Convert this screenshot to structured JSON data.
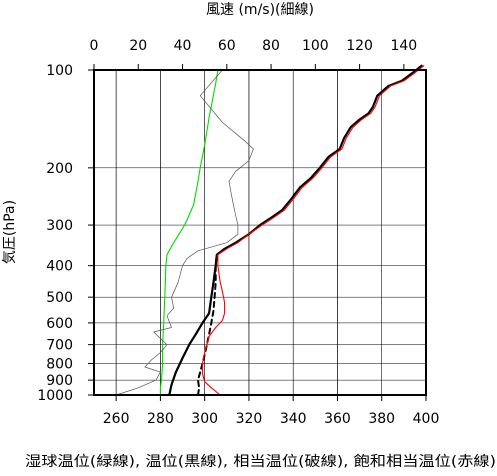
{
  "chart_data": {
    "type": "line",
    "xlabel_top": "風速 (m/s)(細線)",
    "xlabel_bottom": "湿球温位(緑線), 温位(黒線), 相当温位(破線), 飽和相当温位(赤線)",
    "ylabel": "気圧(hPa)",
    "y_scale": "log",
    "y_reversed": true,
    "ylim": [
      1000,
      100
    ],
    "y_ticks": [
      100,
      200,
      300,
      400,
      500,
      600,
      700,
      800,
      900,
      1000
    ],
    "x_bottom_lim": [
      250,
      400
    ],
    "x_bottom_ticks": [
      260,
      280,
      300,
      320,
      340,
      360,
      380,
      400
    ],
    "x_top_lim": [
      0,
      150
    ],
    "x_top_ticks": [
      0,
      20,
      40,
      60,
      80,
      100,
      120,
      140
    ],
    "grid": true,
    "colors": {
      "wet_bulb": "#00dd00",
      "theta": "#000000",
      "theta_e": "#000000",
      "theta_es": "#ff0000",
      "wind": "#555555",
      "grid": "#000000"
    },
    "series": [
      {
        "key": "wet_bulb",
        "axis": "bottom",
        "style": "solid",
        "points": [
          [
            280,
            1000
          ],
          [
            280,
            950
          ],
          [
            280.5,
            900
          ],
          [
            281,
            800
          ],
          [
            281,
            700
          ],
          [
            281.5,
            600
          ],
          [
            282,
            500
          ],
          [
            282.5,
            400
          ],
          [
            283,
            370
          ],
          [
            286,
            340
          ],
          [
            291,
            300
          ],
          [
            295,
            260
          ],
          [
            297,
            220
          ],
          [
            298,
            200
          ],
          [
            300,
            170
          ],
          [
            302,
            140
          ],
          [
            305,
            110
          ],
          [
            306,
            100
          ]
        ]
      },
      {
        "key": "theta",
        "axis": "bottom",
        "style": "solid",
        "points": [
          [
            284,
            1000
          ],
          [
            285,
            930
          ],
          [
            287,
            850
          ],
          [
            290,
            770
          ],
          [
            293,
            700
          ],
          [
            296,
            650
          ],
          [
            299,
            600
          ],
          [
            302,
            560
          ],
          [
            303,
            500
          ],
          [
            304,
            450
          ],
          [
            305,
            400
          ],
          [
            305.5,
            370
          ],
          [
            309,
            355
          ],
          [
            314,
            340
          ],
          [
            320,
            320
          ],
          [
            325,
            300
          ],
          [
            330,
            285
          ],
          [
            335,
            270
          ],
          [
            339,
            250
          ],
          [
            343,
            230
          ],
          [
            348,
            215
          ],
          [
            352,
            200
          ],
          [
            356,
            185
          ],
          [
            361,
            175
          ],
          [
            363,
            162
          ],
          [
            366,
            150
          ],
          [
            370,
            142
          ],
          [
            374,
            136
          ],
          [
            376,
            130
          ],
          [
            378,
            120
          ],
          [
            383,
            112
          ],
          [
            389,
            108
          ],
          [
            394,
            102
          ],
          [
            398,
            97
          ]
        ]
      },
      {
        "key": "theta_e",
        "axis": "bottom",
        "style": "dashed",
        "points": [
          [
            297,
            1000
          ],
          [
            297.5,
            950
          ],
          [
            297,
            900
          ],
          [
            298,
            850
          ],
          [
            299,
            800
          ],
          [
            300,
            750
          ],
          [
            301,
            700
          ],
          [
            302,
            650
          ],
          [
            303,
            600
          ],
          [
            304,
            550
          ],
          [
            304.5,
            500
          ],
          [
            305,
            450
          ],
          [
            305,
            400
          ],
          [
            305.5,
            370
          ]
        ]
      },
      {
        "key": "theta_es",
        "axis": "bottom",
        "style": "solid",
        "points": [
          [
            307,
            1000
          ],
          [
            303,
            950
          ],
          [
            300,
            910
          ],
          [
            299,
            860
          ],
          [
            299,
            800
          ],
          [
            300,
            740
          ],
          [
            301,
            700
          ],
          [
            302,
            660
          ],
          [
            305,
            620
          ],
          [
            308,
            590
          ],
          [
            309,
            560
          ],
          [
            309,
            520
          ],
          [
            308,
            480
          ],
          [
            307,
            450
          ],
          [
            306,
            400
          ],
          [
            306,
            370
          ],
          [
            310,
            355
          ],
          [
            315,
            340
          ],
          [
            320,
            320
          ],
          [
            326,
            300
          ],
          [
            331,
            285
          ],
          [
            336,
            270
          ],
          [
            340,
            250
          ],
          [
            344,
            230
          ],
          [
            349,
            215
          ],
          [
            353,
            200
          ],
          [
            357,
            185
          ],
          [
            362,
            175
          ],
          [
            364,
            162
          ],
          [
            367,
            150
          ],
          [
            371,
            142
          ],
          [
            375,
            136
          ],
          [
            377,
            130
          ],
          [
            379,
            120
          ],
          [
            384,
            112
          ],
          [
            390,
            108
          ],
          [
            395,
            102
          ],
          [
            399,
            97
          ]
        ]
      },
      {
        "key": "wind",
        "axis": "top",
        "style": "thin",
        "points": [
          [
            10,
            1000
          ],
          [
            20,
            950
          ],
          [
            28,
            900
          ],
          [
            30,
            850
          ],
          [
            23,
            820
          ],
          [
            26,
            780
          ],
          [
            30,
            740
          ],
          [
            33,
            700
          ],
          [
            27,
            640
          ],
          [
            35,
            620
          ],
          [
            33,
            570
          ],
          [
            36,
            540
          ],
          [
            35,
            500
          ],
          [
            38,
            450
          ],
          [
            40,
            400
          ],
          [
            42,
            380
          ],
          [
            47,
            360
          ],
          [
            60,
            340
          ],
          [
            65,
            320
          ],
          [
            65,
            300
          ],
          [
            64,
            280
          ],
          [
            63,
            260
          ],
          [
            62,
            240
          ],
          [
            61,
            220
          ],
          [
            64,
            205
          ],
          [
            70,
            190
          ],
          [
            72,
            175
          ],
          [
            68,
            165
          ],
          [
            58,
            145
          ],
          [
            48,
            120
          ],
          [
            58,
            100
          ]
        ]
      }
    ]
  }
}
